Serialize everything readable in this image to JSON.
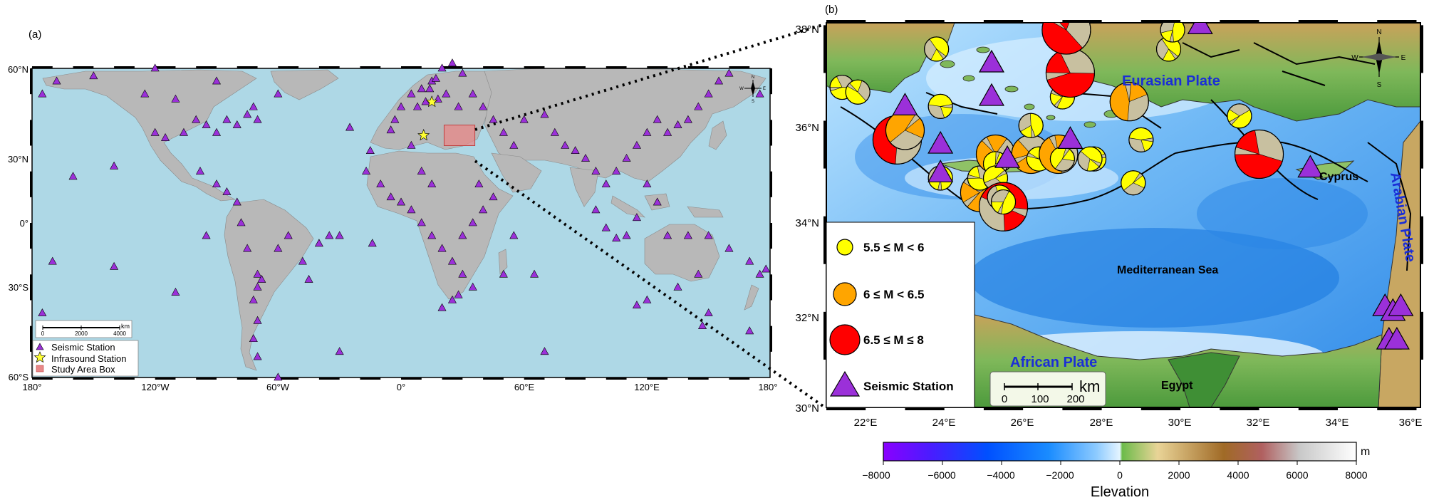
{
  "panel_a": {
    "label": "(a)",
    "lat_ticks": [
      "60°N",
      "30°N",
      "0°",
      "30°S",
      "60°S"
    ],
    "lon_ticks": [
      "180°",
      "120°W",
      "60°W",
      "0°",
      "60°E",
      "120°E",
      "180°"
    ],
    "compass": [
      "N",
      "E",
      "S",
      "W"
    ],
    "scalebar": {
      "unit": "km",
      "ticks": [
        "0",
        "2000",
        "4000"
      ]
    },
    "legend": [
      {
        "label": "Seismic Station"
      },
      {
        "label": "Infrasound Station"
      },
      {
        "label": "Study Area Box"
      }
    ],
    "colors": {
      "ocean": "#aed8e6",
      "land": "#b8b8b8",
      "station": "#9b30d9",
      "star": "#ffff33",
      "box": "#e88888"
    },
    "seismic_stations": [
      [
        -175,
        50
      ],
      [
        -168,
        55
      ],
      [
        -150,
        57
      ],
      [
        -160,
        18
      ],
      [
        -140,
        22
      ],
      [
        -125,
        50
      ],
      [
        -120,
        35
      ],
      [
        -115,
        33
      ],
      [
        -110,
        48
      ],
      [
        -106,
        35
      ],
      [
        -100,
        40
      ],
      [
        -95,
        38
      ],
      [
        -90,
        35
      ],
      [
        -85,
        40
      ],
      [
        -80,
        38
      ],
      [
        -75,
        42
      ],
      [
        -72,
        45
      ],
      [
        -70,
        40
      ],
      [
        -98,
        20
      ],
      [
        -90,
        15
      ],
      [
        -85,
        12
      ],
      [
        -80,
        8
      ],
      [
        -78,
        0
      ],
      [
        -75,
        -10
      ],
      [
        -70,
        -20
      ],
      [
        -68,
        -22
      ],
      [
        -70,
        -25
      ],
      [
        -72,
        -30
      ],
      [
        -70,
        -38
      ],
      [
        -72,
        -45
      ],
      [
        -70,
        -52
      ],
      [
        -60,
        -10
      ],
      [
        -55,
        -5
      ],
      [
        -48,
        -15
      ],
      [
        -45,
        -22
      ],
      [
        -40,
        -8
      ],
      [
        -35,
        -5
      ],
      [
        -30,
        -5
      ],
      [
        -14,
        -8
      ],
      [
        -15,
        28
      ],
      [
        -25,
        37
      ],
      [
        -5,
        36
      ],
      [
        -3,
        40
      ],
      [
        0,
        45
      ],
      [
        5,
        50
      ],
      [
        10,
        52
      ],
      [
        15,
        55
      ],
      [
        20,
        60
      ],
      [
        25,
        62
      ],
      [
        30,
        58
      ],
      [
        35,
        50
      ],
      [
        40,
        45
      ],
      [
        45,
        40
      ],
      [
        50,
        35
      ],
      [
        55,
        30
      ],
      [
        60,
        40
      ],
      [
        70,
        42
      ],
      [
        75,
        35
      ],
      [
        80,
        30
      ],
      [
        85,
        28
      ],
      [
        90,
        25
      ],
      [
        95,
        20
      ],
      [
        100,
        15
      ],
      [
        105,
        20
      ],
      [
        110,
        25
      ],
      [
        115,
        30
      ],
      [
        120,
        35
      ],
      [
        125,
        40
      ],
      [
        130,
        35
      ],
      [
        135,
        38
      ],
      [
        140,
        40
      ],
      [
        145,
        45
      ],
      [
        150,
        50
      ],
      [
        155,
        55
      ],
      [
        160,
        58
      ],
      [
        120,
        15
      ],
      [
        125,
        8
      ],
      [
        115,
        2
      ],
      [
        110,
        -5
      ],
      [
        105,
        -6
      ],
      [
        100,
        -2
      ],
      [
        95,
        5
      ],
      [
        130,
        -5
      ],
      [
        140,
        -5
      ],
      [
        150,
        -5
      ],
      [
        160,
        -10
      ],
      [
        170,
        -15
      ],
      [
        175,
        -20
      ],
      [
        178,
        -18
      ],
      [
        145,
        -20
      ],
      [
        135,
        -25
      ],
      [
        120,
        -30
      ],
      [
        115,
        -32
      ],
      [
        150,
        -35
      ],
      [
        147,
        -40
      ],
      [
        170,
        -42
      ],
      [
        -5,
        10
      ],
      [
        0,
        8
      ],
      [
        5,
        5
      ],
      [
        10,
        0
      ],
      [
        15,
        -5
      ],
      [
        20,
        -10
      ],
      [
        25,
        -15
      ],
      [
        30,
        -20
      ],
      [
        35,
        -25
      ],
      [
        28,
        -28
      ],
      [
        25,
        -30
      ],
      [
        20,
        -33
      ],
      [
        30,
        -5
      ],
      [
        35,
        0
      ],
      [
        40,
        5
      ],
      [
        45,
        10
      ],
      [
        38,
        15
      ],
      [
        15,
        15
      ],
      [
        10,
        20
      ],
      [
        5,
        30
      ],
      [
        -10,
        15
      ],
      [
        -17,
        20
      ],
      [
        65,
        -20
      ],
      [
        70,
        -50
      ],
      [
        55,
        -5
      ],
      [
        50,
        -20
      ],
      [
        -60,
        -60
      ],
      [
        -30,
        -50
      ],
      [
        -170,
        -15
      ],
      [
        -140,
        -17
      ],
      [
        -110,
        -27
      ],
      [
        -95,
        -5
      ],
      [
        -175,
        -35
      ],
      [
        175,
        50
      ],
      [
        -120,
        60
      ],
      [
        -90,
        55
      ],
      [
        -60,
        50
      ],
      [
        12,
        47
      ],
      [
        18,
        48
      ],
      [
        8,
        45
      ],
      [
        22,
        50
      ],
      [
        14,
        52
      ],
      [
        28,
        45
      ],
      [
        17,
        56
      ]
    ],
    "infrasound_stations": [
      [
        11,
        34
      ],
      [
        15,
        47
      ]
    ],
    "study_box": {
      "lon": [
        21,
        36
      ],
      "lat": [
        30,
        38
      ]
    }
  },
  "panel_b": {
    "label": "(b)",
    "lat_ticks": [
      "38°N",
      "36°N",
      "34°N",
      "32°N",
      "30°N"
    ],
    "lon_ticks": [
      "22°E",
      "24°E",
      "26°E",
      "28°E",
      "30°E",
      "32°E",
      "34°E",
      "36°E"
    ],
    "compass": [
      "N",
      "E",
      "S",
      "W"
    ],
    "labels": {
      "eurasian": "Eurasian Plate",
      "african": "African Plate",
      "arabian": "Arabian Plate",
      "sea": "Mediterranean Sea",
      "cyprus": "Cyprus",
      "egypt": "Egypt"
    },
    "scalebar": {
      "unit": "km",
      "ticks": [
        "0",
        "100",
        "200"
      ]
    },
    "legend": [
      {
        "label": "5.5 ≤ M < 6",
        "color": "#ffff00"
      },
      {
        "label": "6 ≤ M < 6.5",
        "color": "#ffa500"
      },
      {
        "label": "6.5 ≤ M ≤ 8",
        "color": "#ff0000"
      },
      {
        "label": "Seismic Station",
        "color": "#9b30d9"
      }
    ],
    "events": [
      {
        "lon": 21.4,
        "lat": 36.7,
        "mag": 5.7
      },
      {
        "lon": 21.8,
        "lat": 36.6,
        "mag": 5.6
      },
      {
        "lon": 22.8,
        "lat": 35.6,
        "mag": 6.8
      },
      {
        "lon": 23.0,
        "lat": 35.8,
        "mag": 6.2
      },
      {
        "lon": 23.9,
        "lat": 36.3,
        "mag": 5.6
      },
      {
        "lon": 23.8,
        "lat": 37.5,
        "mag": 5.6
      },
      {
        "lon": 23.9,
        "lat": 34.8,
        "mag": 5.6
      },
      {
        "lon": 24.9,
        "lat": 34.5,
        "mag": 6.0
      },
      {
        "lon": 24.9,
        "lat": 34.8,
        "mag": 5.6
      },
      {
        "lon": 25.3,
        "lat": 35.3,
        "mag": 6.0
      },
      {
        "lon": 25.3,
        "lat": 35.1,
        "mag": 5.7
      },
      {
        "lon": 25.3,
        "lat": 34.8,
        "mag": 5.6
      },
      {
        "lon": 25.5,
        "lat": 34.2,
        "mag": 6.8
      },
      {
        "lon": 25.4,
        "lat": 34.4,
        "mag": 5.7
      },
      {
        "lon": 25.5,
        "lat": 34.3,
        "mag": 5.6
      },
      {
        "lon": 26.2,
        "lat": 35.3,
        "mag": 6.0
      },
      {
        "lon": 26.4,
        "lat": 35.2,
        "mag": 5.6
      },
      {
        "lon": 26.9,
        "lat": 35.3,
        "mag": 6.0
      },
      {
        "lon": 27.0,
        "lat": 35.2,
        "mag": 5.6
      },
      {
        "lon": 27.8,
        "lat": 35.2,
        "mag": 5.6
      },
      {
        "lon": 27.7,
        "lat": 35.2,
        "mag": 5.6
      },
      {
        "lon": 26.2,
        "lat": 35.9,
        "mag": 5.6
      },
      {
        "lon": 27.0,
        "lat": 36.5,
        "mag": 5.6
      },
      {
        "lon": 27.2,
        "lat": 37.0,
        "mag": 6.8
      },
      {
        "lon": 27.1,
        "lat": 37.9,
        "mag": 6.8
      },
      {
        "lon": 28.7,
        "lat": 36.4,
        "mag": 6.2
      },
      {
        "lon": 28.8,
        "lat": 34.7,
        "mag": 5.7
      },
      {
        "lon": 29.0,
        "lat": 35.6,
        "mag": 5.6
      },
      {
        "lon": 29.7,
        "lat": 37.5,
        "mag": 5.6
      },
      {
        "lon": 29.8,
        "lat": 37.9,
        "mag": 5.6
      },
      {
        "lon": 31.5,
        "lat": 36.1,
        "mag": 5.6
      },
      {
        "lon": 32.0,
        "lat": 35.3,
        "mag": 7.0
      }
    ],
    "stations": [
      {
        "lon": 23.0,
        "lat": 36.3
      },
      {
        "lon": 23.9,
        "lat": 35.5
      },
      {
        "lon": 23.9,
        "lat": 34.9
      },
      {
        "lon": 25.2,
        "lat": 37.2
      },
      {
        "lon": 25.2,
        "lat": 36.5
      },
      {
        "lon": 25.6,
        "lat": 35.2
      },
      {
        "lon": 27.2,
        "lat": 35.6
      },
      {
        "lon": 30.5,
        "lat": 38.0
      },
      {
        "lon": 33.3,
        "lat": 35.0
      },
      {
        "lon": 35.2,
        "lat": 32.1
      },
      {
        "lon": 35.4,
        "lat": 32.0
      },
      {
        "lon": 35.6,
        "lat": 32.1
      },
      {
        "lon": 35.3,
        "lat": 31.4
      },
      {
        "lon": 35.5,
        "lat": 31.4
      }
    ]
  },
  "colorbar": {
    "unit": "m",
    "title": "Elevation",
    "ticks": [
      "−8000",
      "−6000",
      "−4000",
      "−2000",
      "0",
      "2000",
      "4000",
      "6000",
      "8000"
    ],
    "stops": [
      "#8a00ff",
      "#3b1cff",
      "#0058ff",
      "#1a8cff",
      "#7cc4ff",
      "#d8f0ff",
      "#6cbb4a",
      "#e8d29a",
      "#9a6a28",
      "#b8b8b8",
      "#ffffff"
    ]
  }
}
